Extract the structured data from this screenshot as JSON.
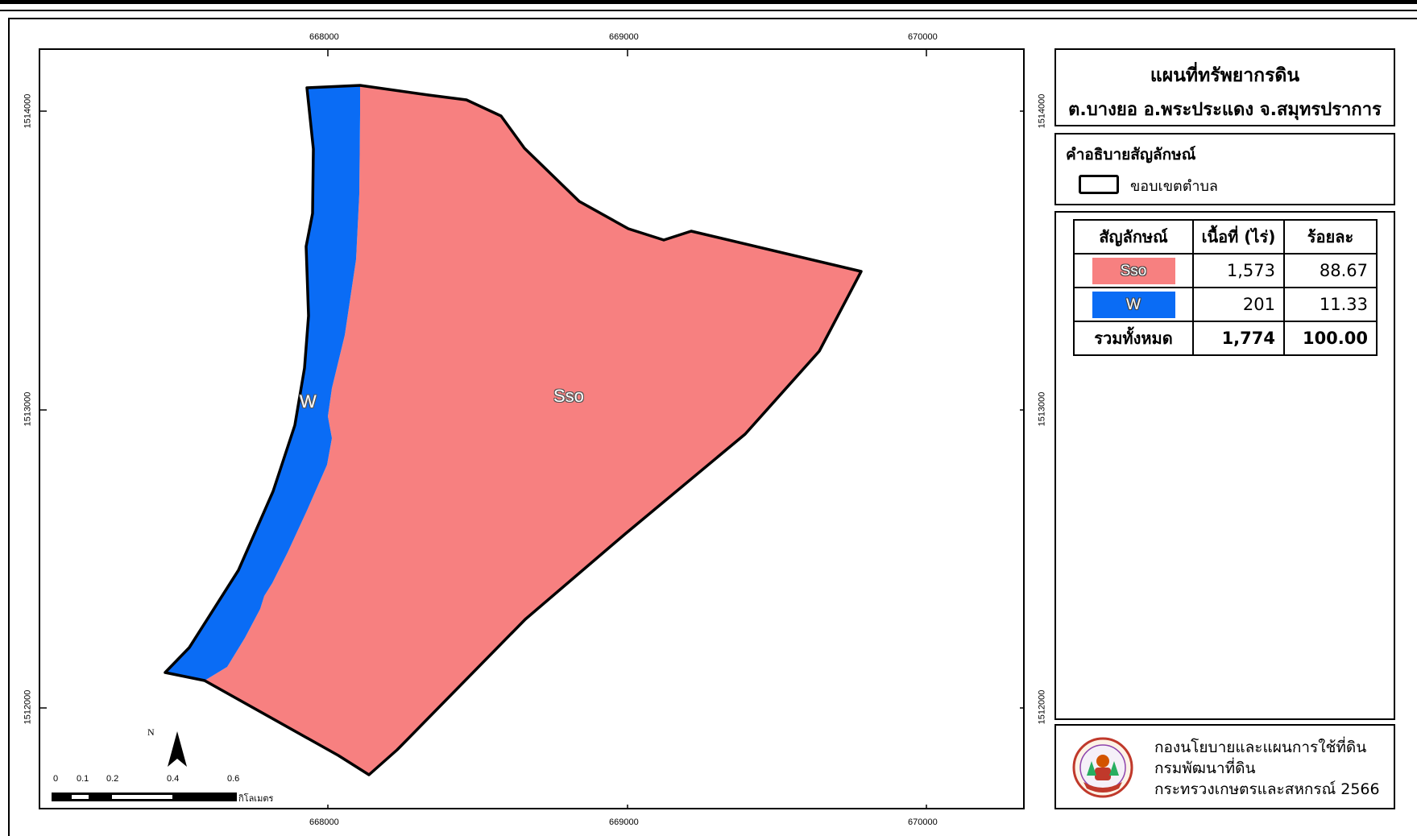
{
  "map": {
    "x_ticks_top": [
      "668000",
      "669000",
      "670000"
    ],
    "x_ticks_bottom": [
      "668000",
      "669000",
      "670000"
    ],
    "y_ticks_left": [
      "1514000",
      "1513000",
      "1512000"
    ],
    "y_ticks_right": [
      "1514000",
      "1513000",
      "1512000"
    ],
    "unit_labels": {
      "sso": "Sso",
      "w": "W"
    },
    "colors": {
      "sso": "#f78080",
      "w": "#0a6cf5",
      "boundary": "#000000"
    },
    "north_label": "N",
    "scale_labels": [
      "0",
      "0.1",
      "0.2",
      "0.4",
      "0.6"
    ],
    "scale_unit": "กิโลเมตร"
  },
  "title": {
    "line1": "แผนที่ทรัพยากรดิน",
    "line2": "ต.บางยอ อ.พระประแดง จ.สมุทรปราการ"
  },
  "legend": {
    "title": "คำอธิบายสัญลักษณ์",
    "boundary_label": "ขอบเขตตำบล"
  },
  "table": {
    "headers": [
      "สัญลักษณ์",
      "เนื้อที่ (ไร่)",
      "ร้อยละ"
    ],
    "rows": [
      {
        "symbol": "Sso",
        "area": "1,573",
        "percent": "88.67",
        "color": "#f78080"
      },
      {
        "symbol": "W",
        "area": "201",
        "percent": "11.33",
        "color": "#0a6cf5"
      }
    ],
    "total": {
      "label": "รวมทั้งหมด",
      "area": "1,774",
      "percent": "100.00"
    }
  },
  "credit": {
    "line1": "กองนโยบายและแผนการใช้ที่ดิน",
    "line2": "กรมพัฒนาที่ดิน",
    "line3": "กระทรวงเกษตรและสหกรณ์ 2566",
    "logo_icon": "land-development-department-seal"
  }
}
